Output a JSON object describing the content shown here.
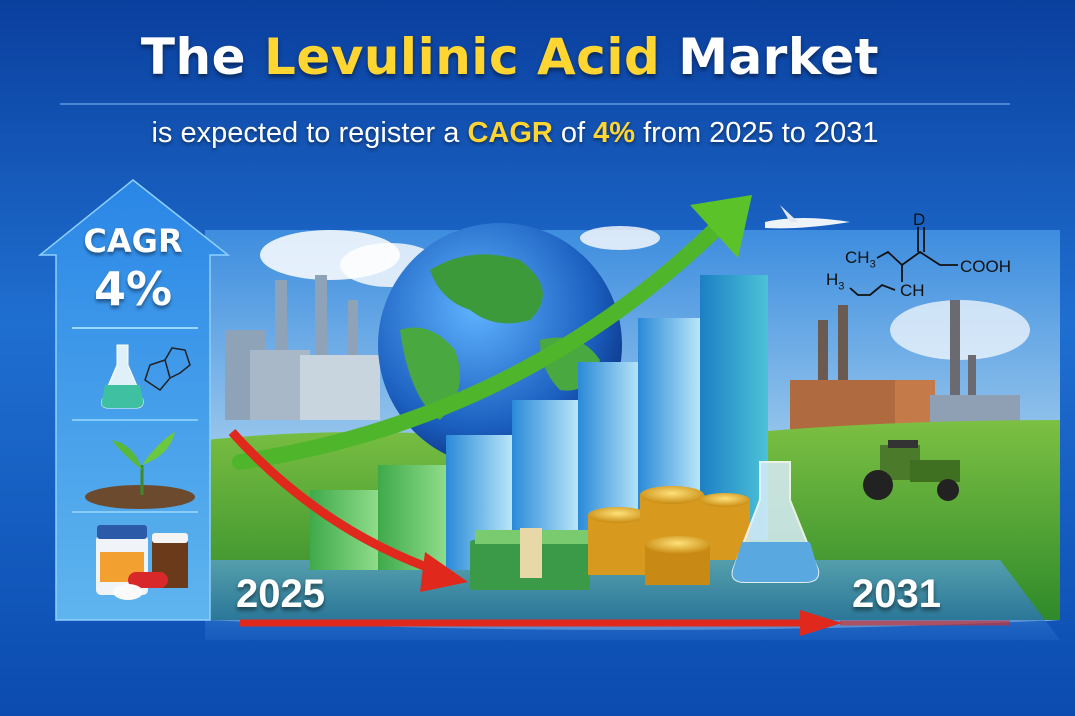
{
  "header": {
    "title_pre": "The",
    "title_highlight": "Levulinic Acid",
    "title_post": "Market",
    "subtitle_pre": "is expected to register a",
    "subtitle_cagr": "CAGR",
    "subtitle_mid": "of",
    "subtitle_rate": "4%",
    "subtitle_post": "from 2025 to 2031"
  },
  "badge": {
    "label": "CAGR",
    "value": "4%"
  },
  "timeline": {
    "start_year": "2025",
    "end_year": "2031"
  },
  "formula": {
    "top": "D",
    "ch3": "CH",
    "ch3_sub": "3",
    "cooh": "COOH",
    "h3": "H",
    "h3_sub": "3",
    "ch": "CH"
  },
  "icons": [
    "flask-icon",
    "molecule-icon",
    "sprout-icon",
    "medicine-bottle-icon",
    "pill-icon",
    "globe-icon",
    "growth-arrow-icon",
    "coins-icon",
    "cash-stack-icon",
    "airplane-icon",
    "tractor-icon",
    "factory-icon"
  ],
  "colors": {
    "background": "#0d4fb0",
    "highlight": "#ffd531",
    "growth_arrow": "#5cc22a",
    "decline_arrow": "#e0281c"
  }
}
